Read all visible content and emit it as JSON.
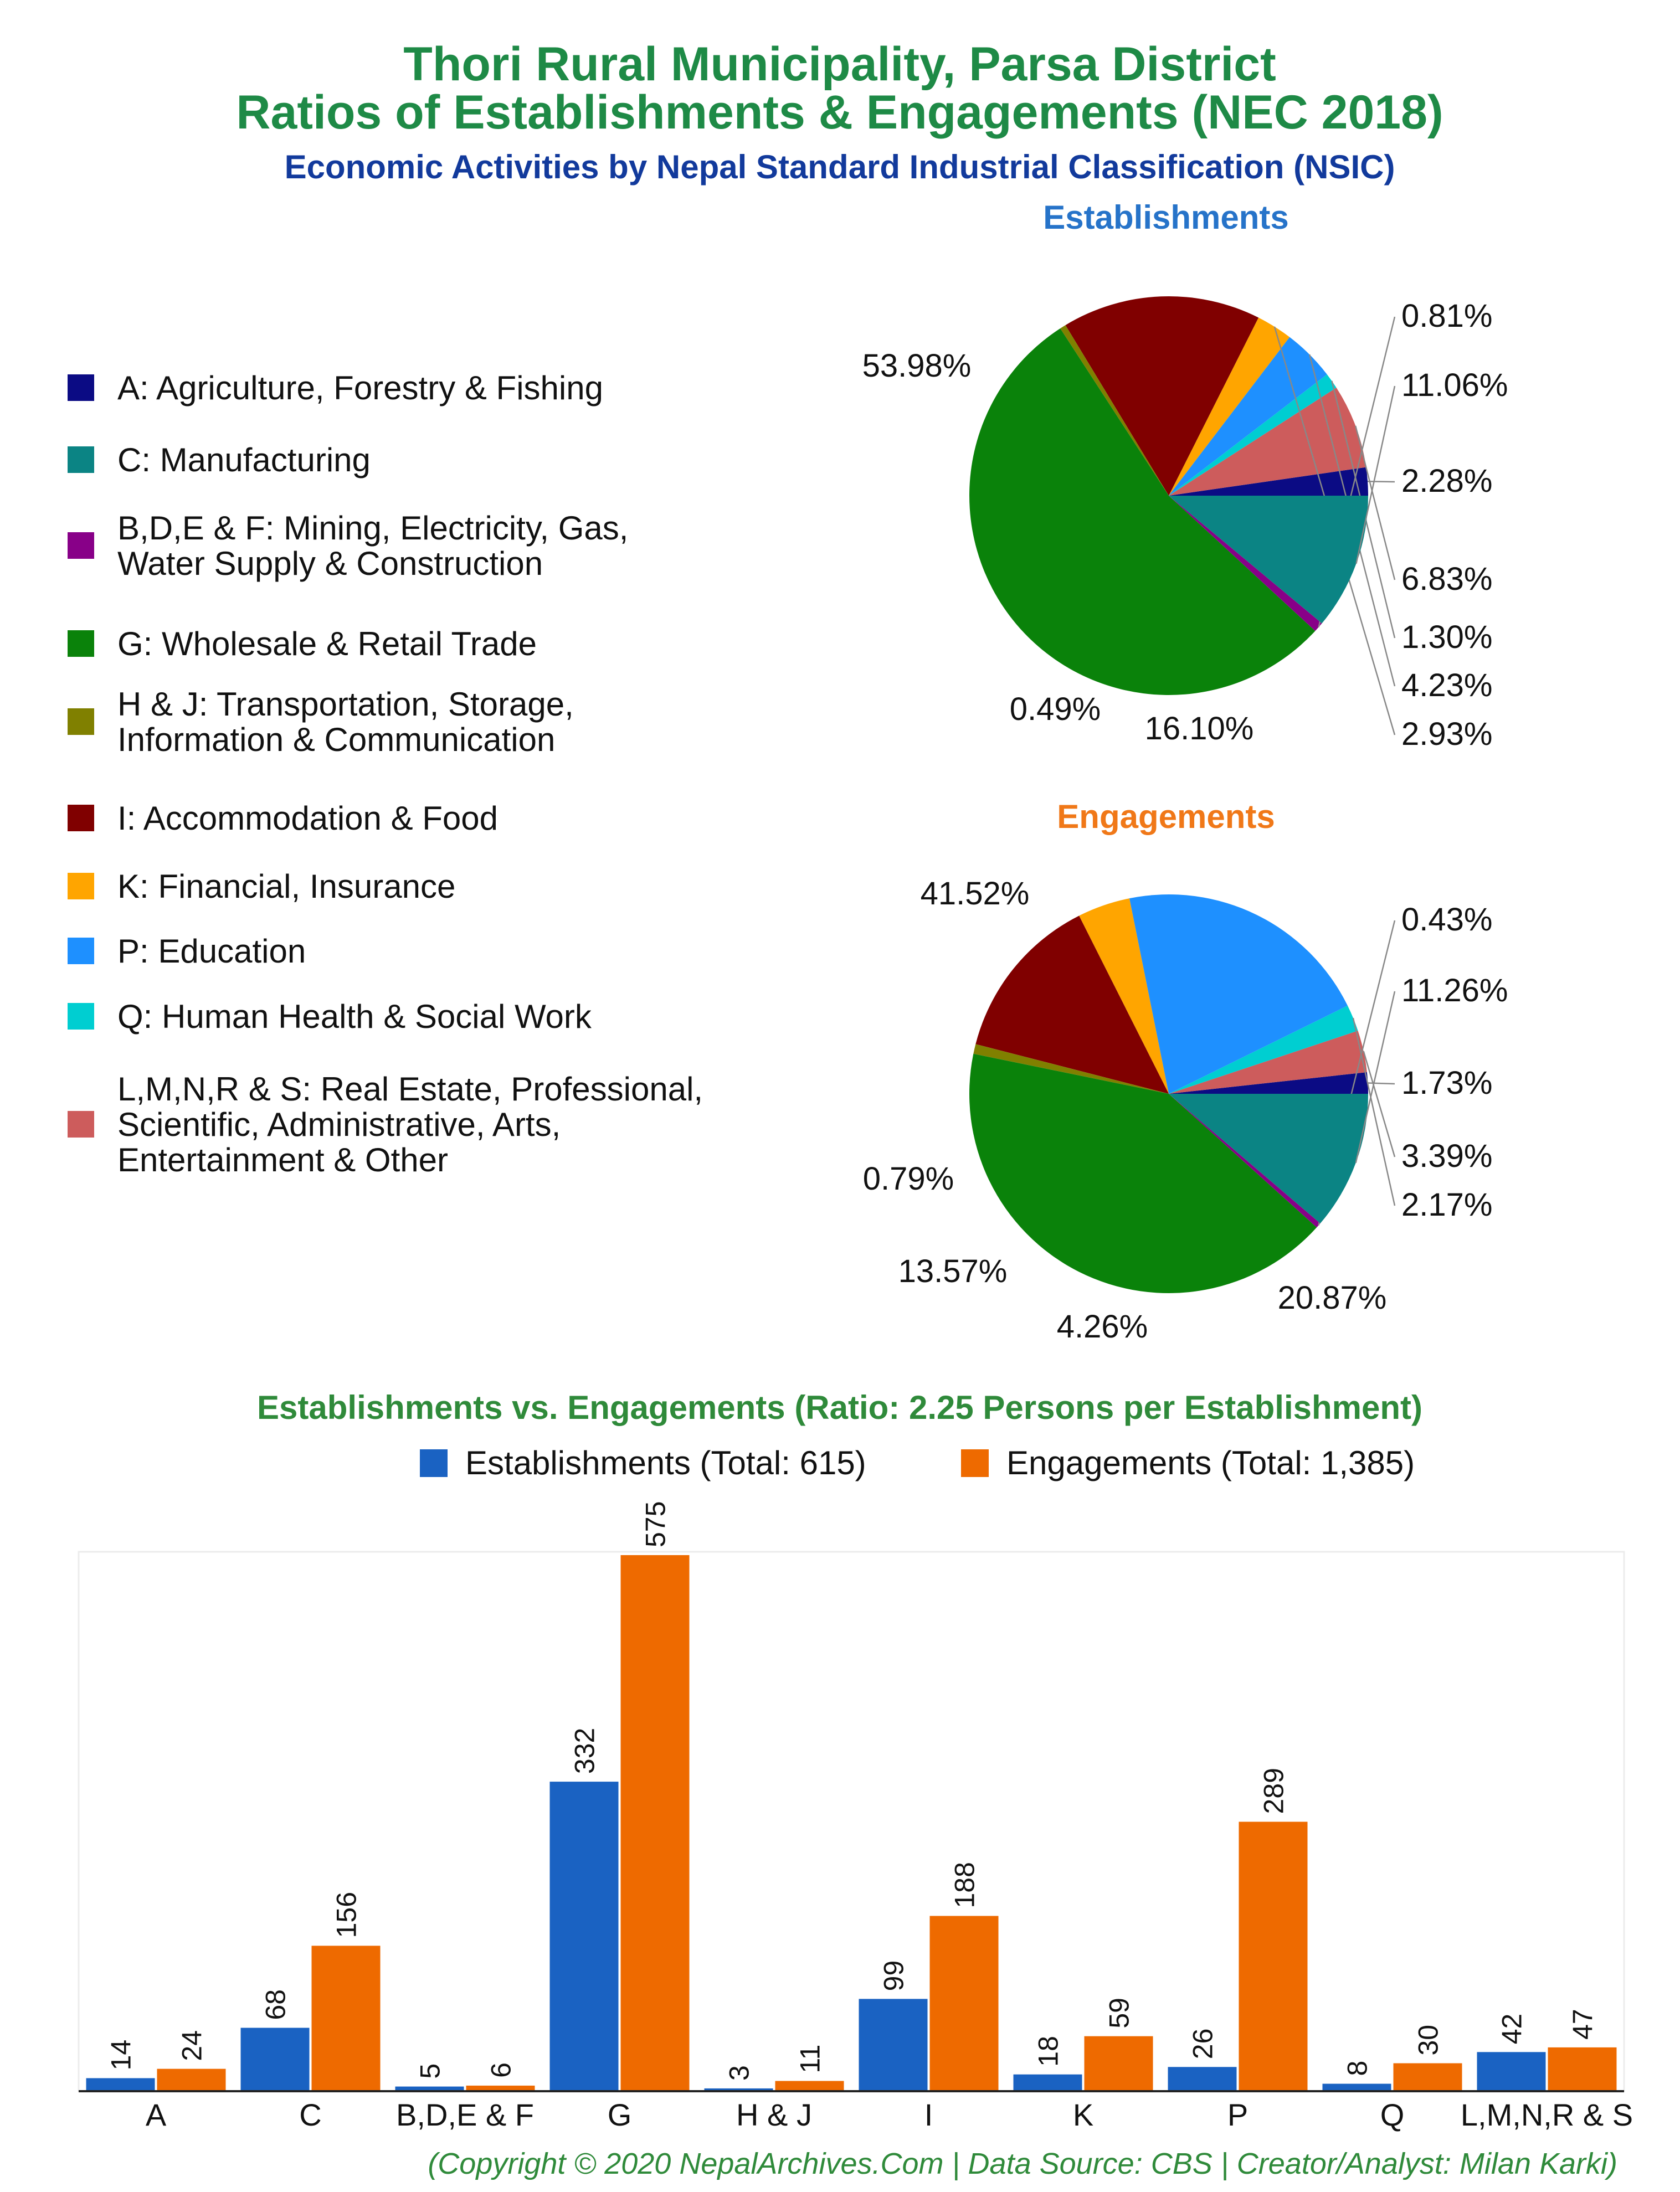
{
  "header": {
    "title_line1": "Thori Rural Municipality, Parsa District",
    "title_line2": "Ratios of Establishments & Engagements (NEC 2018)",
    "subtitle": "Economic Activities by Nepal Standard Industrial Classification (NSIC)"
  },
  "colors": {
    "title": "#1e8a46",
    "subtitle": "#123a9c",
    "establishments_title": "#2673c9",
    "engagements_title": "#f07818",
    "bar_title": "#2f8a3a",
    "establishments_bar": "#1a62c2",
    "engagements_bar": "#ee6a00",
    "footer": "#2f8a3a"
  },
  "legend": [
    {
      "label": "A: Agriculture, Forestry & Fishing",
      "color": "#0b0b84"
    },
    {
      "label": "C: Manufacturing",
      "color": "#0b8484"
    },
    {
      "label": "B,D,E & F: Mining, Electricity, Gas,\nWater Supply & Construction",
      "color": "#880088"
    },
    {
      "label": "G: Wholesale & Retail Trade",
      "color": "#0a820a"
    },
    {
      "label": "H & J: Transportation, Storage,\nInformation & Communication",
      "color": "#808000"
    },
    {
      "label": "I: Accommodation & Food",
      "color": "#800000"
    },
    {
      "label": "K: Financial, Insurance",
      "color": "#ffa500"
    },
    {
      "label": "P: Education",
      "color": "#1e90ff"
    },
    {
      "label": "Q: Human Health & Social Work",
      "color": "#00ced1"
    },
    {
      "label": "L,M,N,R & S: Real Estate, Professional,\nScientific, Administrative, Arts,\nEntertainment & Other",
      "color": "#cd5c5c"
    }
  ],
  "chart_data": [
    {
      "type": "pie",
      "title": "Establishments",
      "slices": [
        {
          "category": "A",
          "value": 2.28,
          "label": "2.28%"
        },
        {
          "category": "L,M,N,R & S",
          "value": 6.83,
          "label": "6.83%"
        },
        {
          "category": "Q",
          "value": 1.3,
          "label": "1.30%"
        },
        {
          "category": "P",
          "value": 4.23,
          "label": "4.23%"
        },
        {
          "category": "K",
          "value": 2.93,
          "label": "2.93%"
        },
        {
          "category": "I",
          "value": 16.1,
          "label": "16.10%"
        },
        {
          "category": "H & J",
          "value": 0.49,
          "label": "0.49%"
        },
        {
          "category": "G",
          "value": 53.98,
          "label": "53.98%"
        },
        {
          "category": "B,D,E & F",
          "value": 0.81,
          "label": "0.81%"
        },
        {
          "category": "C",
          "value": 11.06,
          "label": "11.06%"
        }
      ]
    },
    {
      "type": "pie",
      "title": "Engagements",
      "slices": [
        {
          "category": "A",
          "value": 1.73,
          "label": "1.73%"
        },
        {
          "category": "L,M,N,R & S",
          "value": 3.39,
          "label": "3.39%"
        },
        {
          "category": "Q",
          "value": 2.17,
          "label": "2.17%"
        },
        {
          "category": "P",
          "value": 20.87,
          "label": "20.87%"
        },
        {
          "category": "K",
          "value": 4.26,
          "label": "4.26%"
        },
        {
          "category": "I",
          "value": 13.57,
          "label": "13.57%"
        },
        {
          "category": "H & J",
          "value": 0.79,
          "label": "0.79%"
        },
        {
          "category": "G",
          "value": 41.52,
          "label": "41.52%"
        },
        {
          "category": "B,D,E & F",
          "value": 0.43,
          "label": "0.43%"
        },
        {
          "category": "C",
          "value": 11.26,
          "label": "11.26%"
        }
      ]
    },
    {
      "type": "bar",
      "title": "Establishments vs. Engagements (Ratio: 2.25 Persons per Establishment)",
      "categories": [
        "A",
        "C",
        "B,D,E & F",
        "G",
        "H & J",
        "I",
        "K",
        "P",
        "Q",
        "L,M,N,R & S"
      ],
      "series": [
        {
          "name": "Establishments (Total: 615)",
          "values": [
            14,
            68,
            5,
            332,
            3,
            99,
            18,
            26,
            8,
            42
          ]
        },
        {
          "name": "Engagements (Total: 1,385)",
          "values": [
            24,
            156,
            6,
            575,
            11,
            188,
            59,
            289,
            30,
            47
          ]
        }
      ],
      "ylim": [
        0,
        575
      ],
      "legend_position": "top"
    }
  ],
  "footer": {
    "credit": "(Copyright © 2020 NepalArchives.Com | Data Source: CBS | Creator/Analyst: Milan Karki)"
  }
}
